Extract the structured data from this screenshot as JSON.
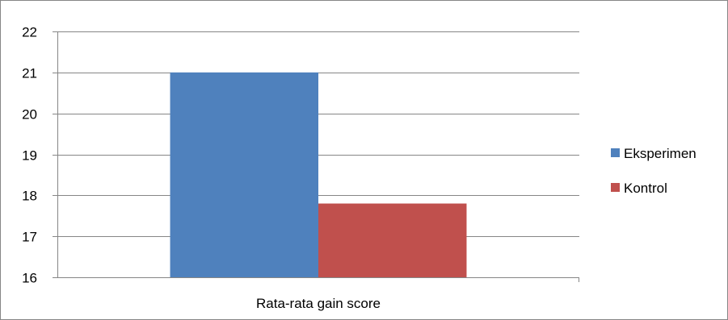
{
  "chart_data": {
    "type": "bar",
    "categories": [
      "Rata-rata gain score"
    ],
    "series": [
      {
        "name": "Eksperimen",
        "values": [
          21
        ],
        "color": "#4F81BD"
      },
      {
        "name": "Kontrol",
        "values": [
          17.8
        ],
        "color": "#C0504D"
      }
    ],
    "title": "",
    "xlabel": "",
    "ylabel": "",
    "ylim": [
      16,
      22
    ],
    "yticks": [
      16,
      17,
      18,
      19,
      20,
      21,
      22
    ],
    "grid": true,
    "legend_position": "right"
  }
}
